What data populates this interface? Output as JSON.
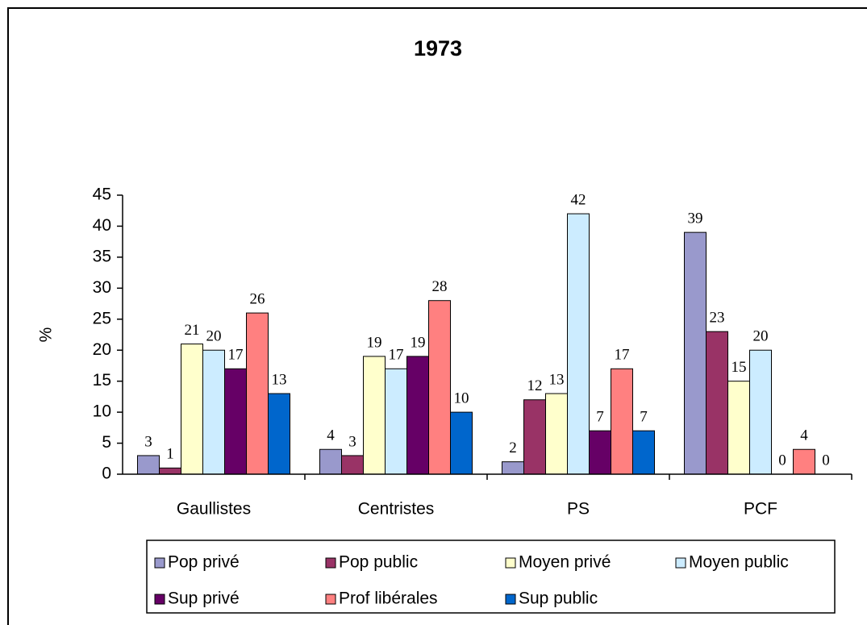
{
  "chart_data": {
    "type": "bar",
    "title": "1973",
    "y_label": "%",
    "categories": [
      "Gaullistes",
      "Centristes",
      "PS",
      "PCF"
    ],
    "series": [
      {
        "name": "Pop privé",
        "color": "#9999cc",
        "values": [
          3,
          4,
          2,
          39
        ]
      },
      {
        "name": "Pop public",
        "color": "#993366",
        "values": [
          1,
          3,
          12,
          23
        ]
      },
      {
        "name": "Moyen privé",
        "color": "#ffffcc",
        "values": [
          21,
          19,
          13,
          15
        ]
      },
      {
        "name": "Moyen public",
        "color": "#ccecff",
        "values": [
          20,
          17,
          42,
          20
        ]
      },
      {
        "name": "Sup privé",
        "color": "#660066",
        "values": [
          17,
          19,
          7,
          0
        ]
      },
      {
        "name": "Prof libérales",
        "color": "#ff8080",
        "values": [
          26,
          28,
          17,
          4
        ]
      },
      {
        "name": "Sup public",
        "color": "#0066cc",
        "values": [
          13,
          10,
          7,
          0
        ]
      }
    ],
    "ylim": [
      0,
      45
    ],
    "yticks": [
      0,
      5,
      10,
      15,
      20,
      25,
      30,
      35,
      40,
      45
    ],
    "grid": false,
    "legend": "bottom"
  }
}
